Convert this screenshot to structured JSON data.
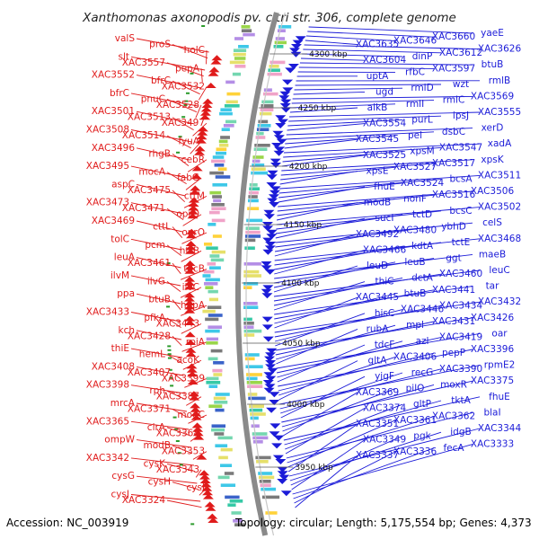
{
  "title": "Xanthomonas axonopodis pv. citri str. 306, complete genome",
  "accession": "Accession: NC_003919",
  "summary": "Topology: circular; Length: 5,175,554 bp; Genes: 4,373",
  "colors": {
    "forward": "#e01b1b",
    "reverse": "#1b1bd8",
    "backbone": "#8a8a8a"
  },
  "kbp_marks": [
    "4300 kbp",
    "4250 kbp",
    "4200 kbp",
    "4150 kbp",
    "4100 kbp",
    "4050 kbp",
    "4000 kbp",
    "3950 kbp"
  ],
  "left_labels": [
    "valS",
    "proS",
    "holC",
    "slt",
    "XAC3557",
    "pepA",
    "XAC3552",
    "bfrC",
    "XAC3532",
    "bfrC",
    "pnuC",
    "XAC3528",
    "XAC3501",
    "XAC3513",
    "XAC3497",
    "XAC3508",
    "XAC3514",
    "fyuA",
    "XAC3496",
    "rhgB",
    "cebR",
    "XAC3495",
    "mocA",
    "fabG",
    "aspC",
    "XAC3475",
    "cttM",
    "XAC3473",
    "XAC3471",
    "oprO",
    "XAC3469",
    "cttL",
    "oprO",
    "tolC",
    "pcm",
    "htrB",
    "leuA",
    "XAC3461",
    "tdcB",
    "ilvM",
    "ilvG",
    "ilvC",
    "ppa",
    "btuB",
    "hppA",
    "XAC3433",
    "pfkA",
    "XAC3443",
    "kch",
    "XAC3428",
    "rpiA",
    "thiE",
    "hemL",
    "acoK",
    "XAC3408",
    "XAC3407",
    "XAC3399",
    "XAC3398",
    "rph",
    "XAC3387",
    "mrcA",
    "XAC3371",
    "modC",
    "XAC3365",
    "cirA",
    "XAC3368",
    "ompW",
    "modB",
    "XAC3353",
    "XAC3342",
    "cysK",
    "XAC3343",
    "cysG",
    "cysH",
    "cysI",
    "cysJ",
    "XAC3324",
    "XAC3325"
  ],
  "right_labels": [
    "yaeE",
    "XAC3660",
    "XAC3646",
    "XAC3635",
    "XAC3626",
    "XAC3612",
    "dinP",
    "XAC3604",
    "btuB",
    "XAC3597",
    "rfbC",
    "uptA",
    "rmlB",
    "wzt",
    "rmlD",
    "ugd",
    "XAC3569",
    "rmlC",
    "rmlI",
    "alkB",
    "XAC3555",
    "ipsJ",
    "purL",
    "XAC3554",
    "xerD",
    "dsbC",
    "pel",
    "XAC3545",
    "xadA",
    "XAC3547",
    "xpsM",
    "XAC3525",
    "xpsK",
    "XAC3517",
    "XAC3527",
    "xpsE",
    "XAC3511",
    "bcsA",
    "XAC3524",
    "fhuE",
    "XAC3506",
    "XAC3516",
    "nonF",
    "modB",
    "XAC3502",
    "bcsC",
    "tctD",
    "sucI",
    "celS",
    "ybhD",
    "XAC3480",
    "XAC3492",
    "XAC3468",
    "tctE",
    "kdtA",
    "XAC3466",
    "maeB",
    "ggt",
    "leuB",
    "leuD",
    "leuC",
    "XAC3460",
    "dctA",
    "thiC",
    "tar",
    "XAC3441",
    "btuB",
    "XAC3445",
    "XAC3432",
    "XAC3434",
    "XAC3446",
    "hisC",
    "XAC3426",
    "XAC3431",
    "mpl",
    "rubA",
    "oar",
    "XAC3419",
    "azl",
    "tdcF",
    "XAC3396",
    "pepP",
    "XAC3406",
    "gltA",
    "rpmE2",
    "XAC3390",
    "recG",
    "yjgF",
    "XAC3375",
    "moxR",
    "pilO",
    "XAC3369",
    "fhuE",
    "tktA",
    "gltP",
    "XAC3374",
    "blaI",
    "XAC3362",
    "XAC3361",
    "XAC3351",
    "XAC3344",
    "idgB",
    "pgk",
    "XAC3349",
    "XAC3333",
    "fecA",
    "XAC3336",
    "XAC3337"
  ]
}
